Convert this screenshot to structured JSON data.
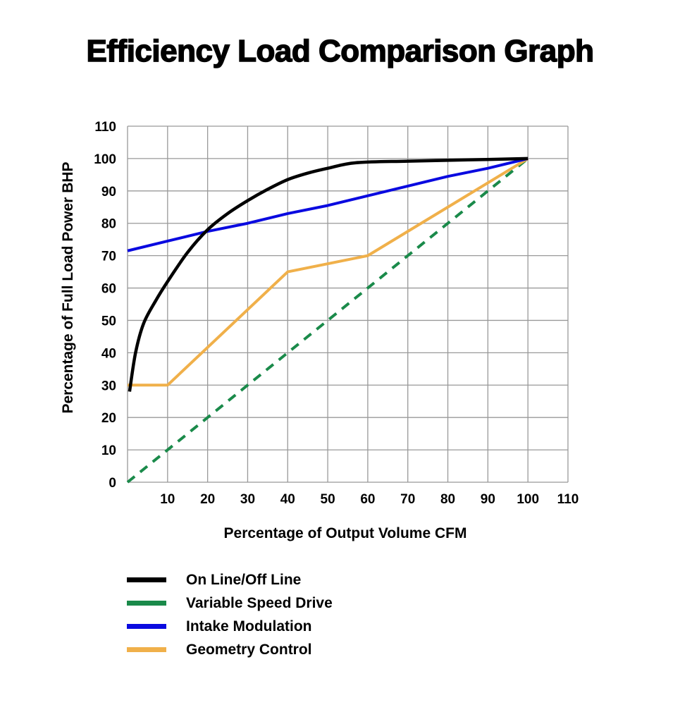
{
  "chart_data": {
    "type": "line",
    "title": "Efficiency Load Comparison Graph",
    "xlabel": "Percentage of Output Volume CFM",
    "ylabel": "Percentage of Full Load Power BHP",
    "xlim": [
      0,
      110
    ],
    "ylim": [
      0,
      110
    ],
    "xticks": [
      10,
      20,
      30,
      40,
      50,
      60,
      70,
      80,
      90,
      100,
      110
    ],
    "yticks": [
      0,
      10,
      20,
      30,
      40,
      50,
      60,
      70,
      80,
      90,
      100,
      110
    ],
    "grid": true,
    "legend_placement": "bottom",
    "series": [
      {
        "name": "On Line/Off Line",
        "color": "#000000",
        "dash": false,
        "points": [
          [
            0.5,
            28
          ],
          [
            2,
            40
          ],
          [
            4,
            49
          ],
          [
            7,
            56
          ],
          [
            10,
            62
          ],
          [
            15,
            71
          ],
          [
            20,
            78
          ],
          [
            25,
            83
          ],
          [
            30,
            87
          ],
          [
            35,
            90.5
          ],
          [
            40,
            93.5
          ],
          [
            45,
            95.5
          ],
          [
            50,
            97
          ],
          [
            57,
            98.7
          ],
          [
            70,
            99.2
          ],
          [
            85,
            99.6
          ],
          [
            100,
            100
          ]
        ]
      },
      {
        "name": "Variable Speed Drive",
        "color": "#1a8a4a",
        "dash": true,
        "points": [
          [
            0,
            0
          ],
          [
            100,
            100
          ]
        ]
      },
      {
        "name": "Intake Modulation",
        "color": "#0a0ae0",
        "dash": false,
        "points": [
          [
            0,
            71.5
          ],
          [
            10,
            74.5
          ],
          [
            20,
            77.5
          ],
          [
            30,
            80
          ],
          [
            40,
            83
          ],
          [
            50,
            85.5
          ],
          [
            60,
            88.5
          ],
          [
            70,
            91.5
          ],
          [
            80,
            94.5
          ],
          [
            90,
            97
          ],
          [
            100,
            100
          ]
        ]
      },
      {
        "name": "Geometry Control",
        "color": "#f0b04a",
        "dash": false,
        "points": [
          [
            0,
            30
          ],
          [
            10,
            30
          ],
          [
            40,
            65
          ],
          [
            60,
            70
          ],
          [
            100,
            100
          ]
        ]
      }
    ]
  }
}
